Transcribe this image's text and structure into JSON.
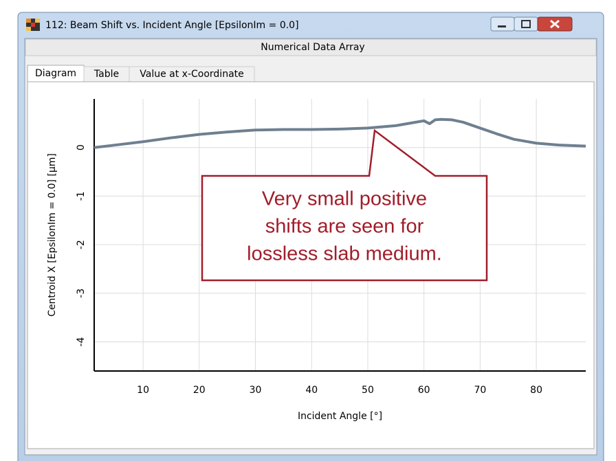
{
  "window": {
    "title": "112: Beam Shift vs. Incident Angle [EpsilonIm = 0.0]",
    "header": "Numerical Data Array",
    "tabs": [
      "Diagram",
      "Table",
      "Value at x-Coordinate"
    ]
  },
  "chart_data": {
    "type": "line",
    "xlabel": "Incident Angle [°]",
    "ylabel": "Centroid X [EpsilonIm = 0.0] [µm]",
    "x": [
      1.3,
      5,
      10,
      15,
      20,
      25,
      30,
      35,
      40,
      45,
      50,
      55,
      58,
      60,
      61,
      62,
      63,
      65,
      67,
      70,
      73,
      76,
      80,
      84,
      88.8
    ],
    "values": [
      0,
      0.05,
      0.12,
      0.2,
      0.27,
      0.32,
      0.36,
      0.37,
      0.37,
      0.38,
      0.4,
      0.45,
      0.51,
      0.55,
      0.49,
      0.57,
      0.58,
      0.57,
      0.52,
      0.4,
      0.28,
      0.17,
      0.09,
      0.05,
      0.03
    ],
    "color": "#6e7f90",
    "xlim": [
      1.3,
      88.8
    ],
    "ylim": [
      -4.6,
      1
    ],
    "xticks": [
      10,
      20,
      30,
      40,
      50,
      60,
      70,
      80
    ],
    "yticks": [
      0,
      -1,
      -2,
      -3,
      -4
    ],
    "grid": true,
    "annotation": [
      "Very small positive",
      "shifts are seen for",
      "lossless slab medium."
    ]
  }
}
